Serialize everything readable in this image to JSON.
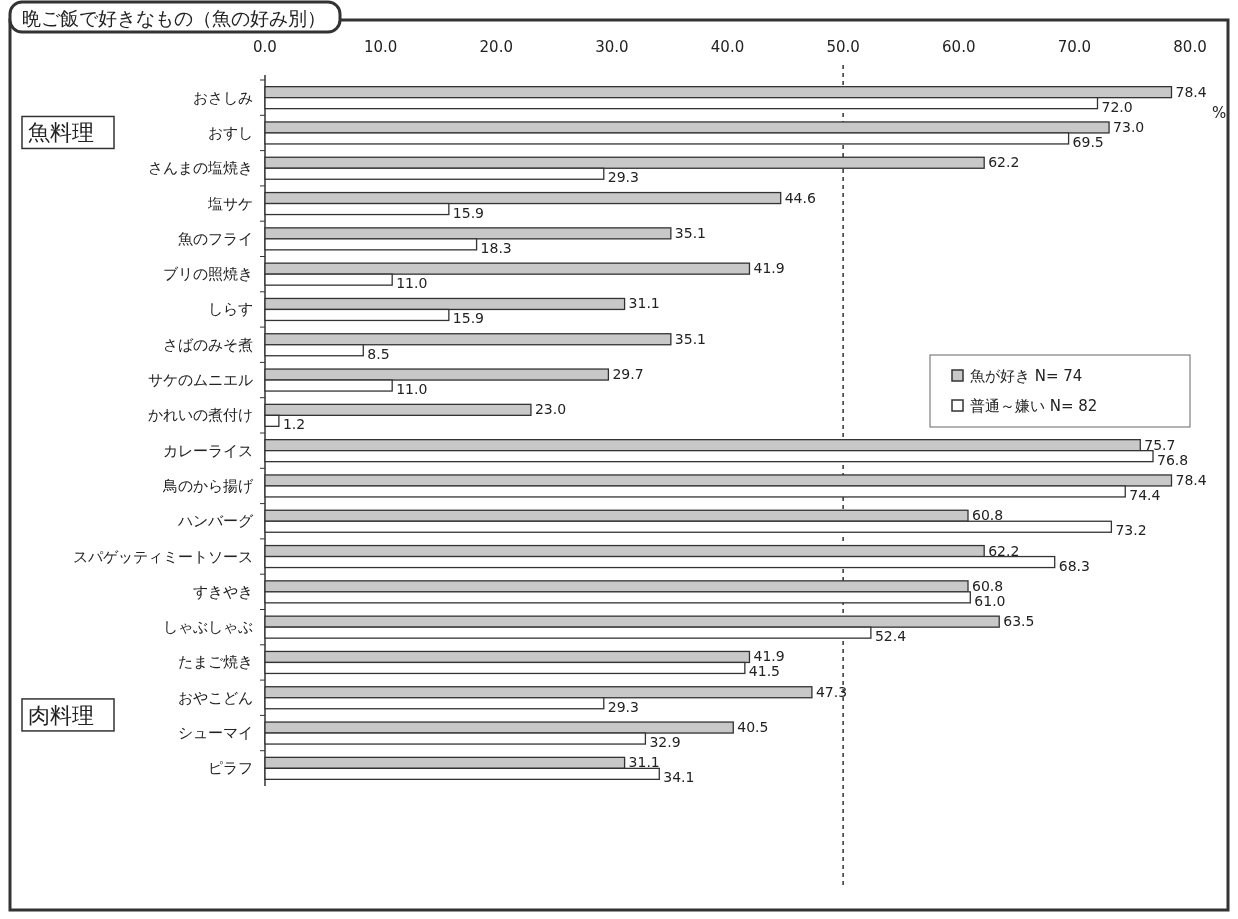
{
  "chart_data": {
    "type": "bar",
    "orientation": "horizontal",
    "title": "晩ご飯で好きなもの（魚の好み別）",
    "xlabel": "%",
    "annotations": [
      "魚料理",
      "肉料理"
    ],
    "categories": [
      "おさしみ",
      "おすし",
      "さんまの塩焼き",
      "塩サケ",
      "魚のフライ",
      "ブリの照焼き",
      "しらす",
      "さばのみそ煮",
      "サケのムニエル",
      "かれいの煮付け",
      "カレーライス",
      "鳥のから揚げ",
      "ハンバーグ",
      "スパゲッティミートソース",
      "すきやき",
      "しゃぶしゃぶ",
      "たまご焼き",
      "おやこどん",
      "シューマイ",
      "ピラフ"
    ],
    "series": [
      {
        "name": "魚が好き N= 74",
        "color": "#c8c8c8",
        "values": [
          78.4,
          73.0,
          62.2,
          44.6,
          35.1,
          41.9,
          31.1,
          35.1,
          29.7,
          23.0,
          75.7,
          78.4,
          60.8,
          62.2,
          60.8,
          63.5,
          41.9,
          47.3,
          40.5,
          31.1
        ],
        "value_labels": [
          "78.4",
          "73.0",
          "62.2",
          "44.6",
          "35.1",
          "41.9",
          "31.1",
          "35.1",
          "29.7",
          "23.0",
          "75.7",
          "78.4",
          "60.8",
          "62.2",
          "60.8",
          "63.5",
          "41.9",
          "47.3",
          "40.5",
          "31.1"
        ]
      },
      {
        "name": "普通～嫌い N= 82",
        "color": "#ffffff",
        "values": [
          72.0,
          69.5,
          29.3,
          15.9,
          18.3,
          11.0,
          15.9,
          8.5,
          11.0,
          1.2,
          76.8,
          74.4,
          73.2,
          68.3,
          61.0,
          52.4,
          41.5,
          29.3,
          32.9,
          34.1
        ],
        "value_labels": [
          "72.0",
          "69.5",
          "29.3",
          "15.9",
          "18.3",
          "11.0",
          "15.9",
          "8.5",
          "11.0",
          "1.2",
          "76.8",
          "74.4",
          "73.2",
          "68.3",
          "61.0",
          "52.4",
          "41.5",
          "29.3",
          "32.9",
          "34.1"
        ]
      }
    ],
    "xlim": [
      0,
      80
    ],
    "xticks": [
      {
        "value": 0,
        "label": "0.0"
      },
      {
        "value": 10,
        "label": "10.0"
      },
      {
        "value": 20,
        "label": "20.0"
      },
      {
        "value": 30,
        "label": "30.0"
      },
      {
        "value": 40,
        "label": "40.0"
      },
      {
        "value": 50,
        "label": "50.0"
      },
      {
        "value": 60,
        "label": "60.0"
      },
      {
        "value": 70,
        "label": "70.0"
      },
      {
        "value": 80,
        "label": "80.0"
      }
    ],
    "ref_lines": [
      {
        "axis": "x",
        "value": 50,
        "line_style": "dashed"
      }
    ],
    "legend": "right"
  }
}
